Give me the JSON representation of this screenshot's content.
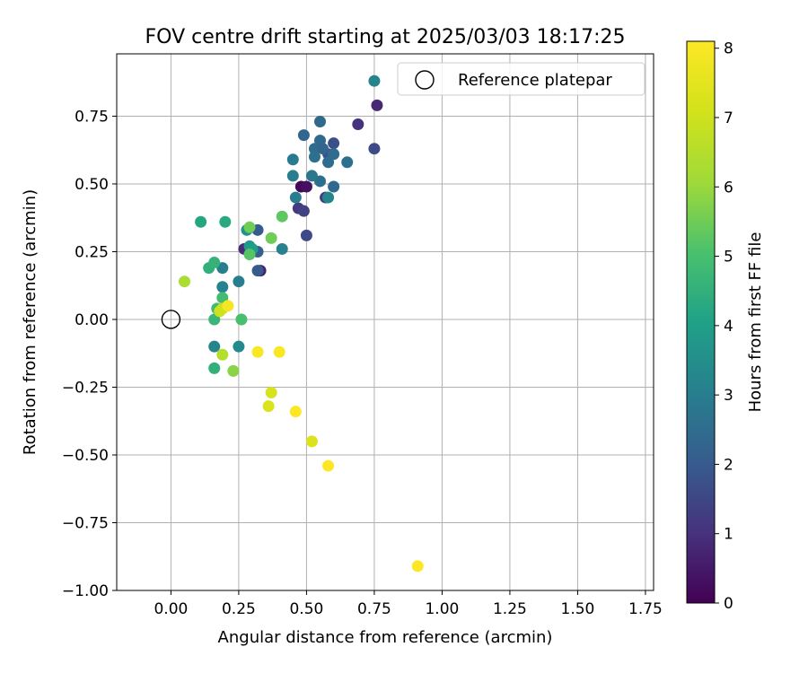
{
  "chart_data": {
    "type": "scatter",
    "title": "FOV centre drift starting at 2025/03/03 18:17:25",
    "xlabel": "Angular distance from reference (arcmin)",
    "ylabel": "Rotation from reference (arcmin)",
    "xlim": [
      -0.2,
      1.78
    ],
    "ylim": [
      -1.0,
      0.98
    ],
    "xticks": [
      0.0,
      0.25,
      0.5,
      0.75,
      1.0,
      1.25,
      1.5,
      1.75
    ],
    "xtick_labels": [
      "0.00",
      "0.25",
      "0.50",
      "0.75",
      "1.00",
      "1.25",
      "1.50",
      "1.75"
    ],
    "yticks": [
      -1.0,
      -0.75,
      -0.5,
      -0.25,
      0.0,
      0.25,
      0.5,
      0.75
    ],
    "ytick_labels": [
      "−1.00",
      "−0.75",
      "−0.50",
      "−0.25",
      "0.00",
      "0.25",
      "0.50",
      "0.75"
    ],
    "grid": true,
    "legend": {
      "position": "top-right",
      "entries": [
        {
          "label": "Reference platepar",
          "marker": "open-circle"
        }
      ]
    },
    "reference_point": {
      "x": 0.0,
      "y": 0.0
    },
    "colorbar": {
      "label": "Hours from first FF file",
      "colormap": "viridis",
      "range": [
        0,
        8.1
      ],
      "ticks": [
        0,
        1,
        2,
        3,
        4,
        5,
        6,
        7,
        8
      ],
      "tick_labels": [
        "0",
        "1",
        "2",
        "3",
        "4",
        "5",
        "6",
        "7",
        "8"
      ]
    },
    "points": [
      {
        "x": 0.48,
        "y": 0.49,
        "c": 0.1
      },
      {
        "x": 0.5,
        "y": 0.49,
        "c": 0.3
      },
      {
        "x": 0.33,
        "y": 0.18,
        "c": 0.7
      },
      {
        "x": 0.27,
        "y": 0.26,
        "c": 0.9
      },
      {
        "x": 0.76,
        "y": 0.79,
        "c": 0.8
      },
      {
        "x": 0.69,
        "y": 0.72,
        "c": 1.0
      },
      {
        "x": 0.47,
        "y": 0.41,
        "c": 1.2
      },
      {
        "x": 0.49,
        "y": 0.4,
        "c": 1.4
      },
      {
        "x": 0.57,
        "y": 0.45,
        "c": 1.3
      },
      {
        "x": 0.5,
        "y": 0.31,
        "c": 1.6
      },
      {
        "x": 0.75,
        "y": 0.63,
        "c": 1.6
      },
      {
        "x": 0.6,
        "y": 0.65,
        "c": 1.7
      },
      {
        "x": 0.58,
        "y": 0.61,
        "c": 1.8
      },
      {
        "x": 0.32,
        "y": 0.33,
        "c": 2.0
      },
      {
        "x": 0.32,
        "y": 0.18,
        "c": 2.0
      },
      {
        "x": 0.32,
        "y": 0.25,
        "c": 2.1
      },
      {
        "x": 0.55,
        "y": 0.73,
        "c": 2.4
      },
      {
        "x": 0.49,
        "y": 0.68,
        "c": 2.3
      },
      {
        "x": 0.55,
        "y": 0.66,
        "c": 2.4
      },
      {
        "x": 0.53,
        "y": 0.63,
        "c": 2.5
      },
      {
        "x": 0.56,
        "y": 0.63,
        "c": 2.3
      },
      {
        "x": 0.6,
        "y": 0.61,
        "c": 2.5
      },
      {
        "x": 0.53,
        "y": 0.6,
        "c": 2.6
      },
      {
        "x": 0.58,
        "y": 0.58,
        "c": 2.5
      },
      {
        "x": 0.65,
        "y": 0.58,
        "c": 2.6
      },
      {
        "x": 0.6,
        "y": 0.49,
        "c": 2.4
      },
      {
        "x": 0.55,
        "y": 0.51,
        "c": 2.6
      },
      {
        "x": 0.52,
        "y": 0.53,
        "c": 2.8
      },
      {
        "x": 0.45,
        "y": 0.59,
        "c": 2.9
      },
      {
        "x": 0.45,
        "y": 0.53,
        "c": 3.0
      },
      {
        "x": 0.46,
        "y": 0.45,
        "c": 3.0
      },
      {
        "x": 0.58,
        "y": 0.45,
        "c": 3.2
      },
      {
        "x": 0.75,
        "y": 0.88,
        "c": 3.2
      },
      {
        "x": 0.41,
        "y": 0.26,
        "c": 3.1
      },
      {
        "x": 0.19,
        "y": 0.19,
        "c": 3.0
      },
      {
        "x": 0.19,
        "y": 0.12,
        "c": 3.1
      },
      {
        "x": 0.25,
        "y": 0.14,
        "c": 3.0
      },
      {
        "x": 0.16,
        "y": -0.1,
        "c": 3.2
      },
      {
        "x": 0.25,
        "y": -0.1,
        "c": 3.3
      },
      {
        "x": 0.28,
        "y": 0.33,
        "c": 3.6
      },
      {
        "x": 0.29,
        "y": 0.27,
        "c": 3.8
      },
      {
        "x": 0.3,
        "y": 0.26,
        "c": 4.0
      },
      {
        "x": 0.2,
        "y": 0.36,
        "c": 4.3
      },
      {
        "x": 0.11,
        "y": 0.36,
        "c": 4.2
      },
      {
        "x": 0.14,
        "y": 0.19,
        "c": 4.5
      },
      {
        "x": 0.16,
        "y": 0.21,
        "c": 4.6
      },
      {
        "x": 0.16,
        "y": -0.18,
        "c": 4.5
      },
      {
        "x": 0.16,
        "y": 0.0,
        "c": 4.7
      },
      {
        "x": 0.17,
        "y": 0.04,
        "c": 4.8
      },
      {
        "x": 0.19,
        "y": 0.08,
        "c": 4.9
      },
      {
        "x": 0.26,
        "y": 0.0,
        "c": 5.0
      },
      {
        "x": 0.29,
        "y": 0.24,
        "c": 5.2
      },
      {
        "x": 0.29,
        "y": 0.34,
        "c": 5.5
      },
      {
        "x": 0.37,
        "y": 0.3,
        "c": 5.5
      },
      {
        "x": 0.41,
        "y": 0.38,
        "c": 5.3
      },
      {
        "x": 0.23,
        "y": -0.19,
        "c": 5.8
      },
      {
        "x": 0.05,
        "y": 0.14,
        "c": 6.3
      },
      {
        "x": 0.19,
        "y": -0.13,
        "c": 6.5
      },
      {
        "x": 0.19,
        "y": 0.04,
        "c": 6.8
      },
      {
        "x": 0.18,
        "y": 0.03,
        "c": 7.0
      },
      {
        "x": 0.37,
        "y": -0.27,
        "c": 7.2
      },
      {
        "x": 0.36,
        "y": -0.32,
        "c": 7.3
      },
      {
        "x": 0.52,
        "y": -0.45,
        "c": 7.3
      },
      {
        "x": 0.21,
        "y": 0.05,
        "c": 7.9
      },
      {
        "x": 0.32,
        "y": -0.12,
        "c": 8.0
      },
      {
        "x": 0.4,
        "y": -0.12,
        "c": 8.0
      },
      {
        "x": 0.46,
        "y": -0.34,
        "c": 8.1
      },
      {
        "x": 0.58,
        "y": -0.54,
        "c": 8.1
      },
      {
        "x": 0.91,
        "y": -0.91,
        "c": 8.1
      }
    ]
  }
}
